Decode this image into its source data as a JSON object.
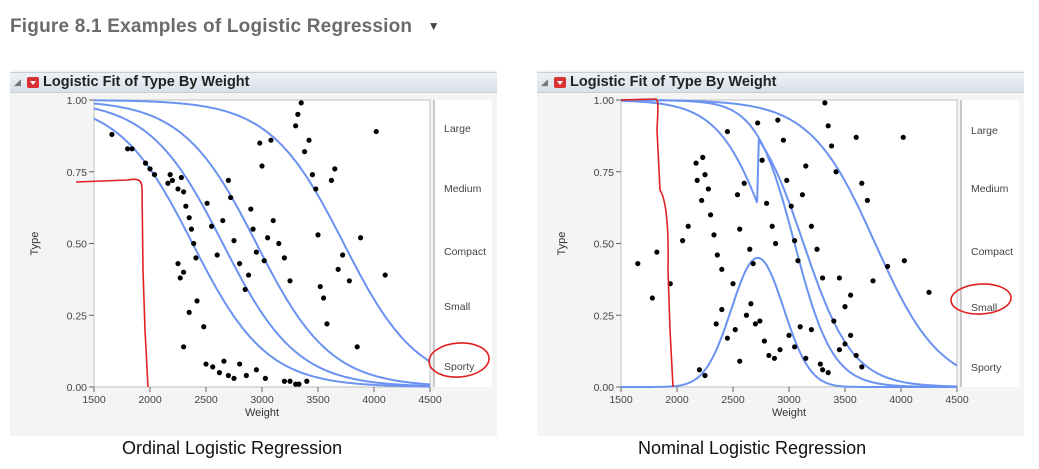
{
  "figure": {
    "title": "Figure 8.1 Examples of Logistic Regression",
    "menu_icon": "triangle-down"
  },
  "panels": [
    {
      "header": "Logistic Fit of Type By Weight",
      "caption": "Ordinal Logistic Regression"
    },
    {
      "header": "Logistic Fit of Type By Weight",
      "caption": "Nominal Logistic Regression"
    }
  ],
  "colors": {
    "curve": "#6a92f0",
    "points": "#000000",
    "annotation": "#e02020"
  },
  "chart_data": [
    {
      "type": "scatter",
      "title": "Logistic Fit of Type By Weight",
      "xlabel": "Weight",
      "ylabel": "Type",
      "xlim": [
        1500,
        4500
      ],
      "ylim": [
        0,
        1
      ],
      "xticks": [
        "1500",
        "2000",
        "2500",
        "3000",
        "3500",
        "4000",
        "4500"
      ],
      "yticks": [
        "0.00",
        "0.25",
        "0.50",
        "0.75",
        "1.00"
      ],
      "right_axis_categories": [
        "Large",
        "Medium",
        "Compact",
        "Small",
        "Sporty"
      ],
      "curves": [
        {
          "name": "",
          "kind": "logistic",
          "mid": 2380,
          "scale": 330
        },
        {
          "name": "",
          "kind": "logistic",
          "mid": 2650,
          "scale": 330
        },
        {
          "name": "",
          "kind": "logistic",
          "mid": 2950,
          "scale": 330
        },
        {
          "name": "",
          "kind": "logistic",
          "mid": 3730,
          "scale": 330
        }
      ],
      "points": [
        [
          1660,
          0.88
        ],
        [
          1800,
          0.83
        ],
        [
          1840,
          0.83
        ],
        [
          1960,
          0.78
        ],
        [
          2000,
          0.76
        ],
        [
          2040,
          0.74
        ],
        [
          2160,
          0.71
        ],
        [
          2180,
          0.74
        ],
        [
          2200,
          0.72
        ],
        [
          2250,
          0.69
        ],
        [
          2280,
          0.73
        ],
        [
          2300,
          0.68
        ],
        [
          2320,
          0.63
        ],
        [
          2350,
          0.59
        ],
        [
          2370,
          0.55
        ],
        [
          2390,
          0.5
        ],
        [
          2410,
          0.45
        ],
        [
          2300,
          0.4
        ],
        [
          2250,
          0.43
        ],
        [
          2270,
          0.38
        ],
        [
          2300,
          0.14
        ],
        [
          2350,
          0.26
        ],
        [
          2420,
          0.3
        ],
        [
          2480,
          0.21
        ],
        [
          2510,
          0.64
        ],
        [
          2550,
          0.56
        ],
        [
          2600,
          0.46
        ],
        [
          2650,
          0.58
        ],
        [
          2700,
          0.72
        ],
        [
          2720,
          0.66
        ],
        [
          2750,
          0.51
        ],
        [
          2800,
          0.43
        ],
        [
          2850,
          0.34
        ],
        [
          2880,
          0.39
        ],
        [
          2900,
          0.62
        ],
        [
          2920,
          0.55
        ],
        [
          2950,
          0.47
        ],
        [
          2980,
          0.85
        ],
        [
          3000,
          0.77
        ],
        [
          3020,
          0.44
        ],
        [
          3050,
          0.52
        ],
        [
          3080,
          0.86
        ],
        [
          3100,
          0.58
        ],
        [
          3150,
          0.5
        ],
        [
          3200,
          0.45
        ],
        [
          3250,
          0.37
        ],
        [
          3300,
          0.91
        ],
        [
          3320,
          0.95
        ],
        [
          3350,
          0.99
        ],
        [
          3380,
          0.82
        ],
        [
          3420,
          0.86
        ],
        [
          3450,
          0.74
        ],
        [
          3480,
          0.69
        ],
        [
          3500,
          0.53
        ],
        [
          3520,
          0.35
        ],
        [
          3550,
          0.31
        ],
        [
          3580,
          0.22
        ],
        [
          3620,
          0.72
        ],
        [
          3650,
          0.76
        ],
        [
          3680,
          0.41
        ],
        [
          3720,
          0.46
        ],
        [
          3780,
          0.37
        ],
        [
          3850,
          0.14
        ],
        [
          3880,
          0.52
        ],
        [
          4020,
          0.89
        ],
        [
          4100,
          0.39
        ],
        [
          2500,
          0.08
        ],
        [
          2560,
          0.07
        ],
        [
          2620,
          0.05
        ],
        [
          2660,
          0.09
        ],
        [
          2700,
          0.04
        ],
        [
          2750,
          0.03
        ],
        [
          2800,
          0.08
        ],
        [
          2860,
          0.04
        ],
        [
          2950,
          0.06
        ],
        [
          3030,
          0.03
        ],
        [
          3200,
          0.02
        ],
        [
          3250,
          0.02
        ],
        [
          3300,
          0.01
        ],
        [
          3330,
          0.01
        ],
        [
          3400,
          0.02
        ]
      ]
    },
    {
      "type": "scatter",
      "title": "Logistic Fit of Type By Weight",
      "xlabel": "Weight",
      "ylabel": "Type",
      "xlim": [
        1500,
        4500
      ],
      "ylim": [
        0,
        1
      ],
      "xticks": [
        "1500",
        "2000",
        "2500",
        "3000",
        "3500",
        "4000",
        "4500"
      ],
      "yticks": [
        "0.00",
        "0.25",
        "0.50",
        "0.75",
        "1.00"
      ],
      "right_axis_categories": [
        "Large",
        "Medium",
        "Compact",
        "Small",
        "Sporty"
      ],
      "curves": [
        {
          "name": "",
          "kind": "bump",
          "peak_x": 2720,
          "peak_y": 0.45
        },
        {
          "name": "",
          "kind": "logistic-bump"
        },
        {
          "name": "",
          "kind": "logistic",
          "mid": 3050,
          "scale": 170
        },
        {
          "name": "",
          "kind": "logistic",
          "mid": 3770,
          "scale": 290
        }
      ],
      "points": [
        [
          1650,
          0.43
        ],
        [
          1780,
          0.31
        ],
        [
          1820,
          0.47
        ],
        [
          1940,
          0.36
        ],
        [
          2050,
          0.51
        ],
        [
          2100,
          0.56
        ],
        [
          2170,
          0.78
        ],
        [
          2180,
          0.72
        ],
        [
          2220,
          0.65
        ],
        [
          2230,
          0.8
        ],
        [
          2250,
          0.74
        ],
        [
          2280,
          0.69
        ],
        [
          2300,
          0.6
        ],
        [
          2330,
          0.53
        ],
        [
          2360,
          0.46
        ],
        [
          2400,
          0.41
        ],
        [
          2450,
          0.89
        ],
        [
          2500,
          0.36
        ],
        [
          2540,
          0.67
        ],
        [
          2560,
          0.55
        ],
        [
          2600,
          0.71
        ],
        [
          2650,
          0.48
        ],
        [
          2680,
          0.43
        ],
        [
          2720,
          0.92
        ],
        [
          2760,
          0.79
        ],
        [
          2800,
          0.64
        ],
        [
          2850,
          0.56
        ],
        [
          2880,
          0.5
        ],
        [
          2900,
          0.93
        ],
        [
          2950,
          0.86
        ],
        [
          2980,
          0.72
        ],
        [
          3020,
          0.63
        ],
        [
          3050,
          0.51
        ],
        [
          3080,
          0.44
        ],
        [
          3120,
          0.67
        ],
        [
          3150,
          0.77
        ],
        [
          3200,
          0.56
        ],
        [
          3250,
          0.48
        ],
        [
          3300,
          0.38
        ],
        [
          3320,
          0.99
        ],
        [
          3350,
          0.91
        ],
        [
          3380,
          0.84
        ],
        [
          3420,
          0.75
        ],
        [
          3450,
          0.38
        ],
        [
          3500,
          0.28
        ],
        [
          3550,
          0.32
        ],
        [
          3600,
          0.87
        ],
        [
          3650,
          0.71
        ],
        [
          3700,
          0.65
        ],
        [
          3750,
          0.37
        ],
        [
          3880,
          0.42
        ],
        [
          4020,
          0.87
        ],
        [
          4030,
          0.44
        ],
        [
          4250,
          0.33
        ],
        [
          2200,
          0.06
        ],
        [
          2250,
          0.04
        ],
        [
          2350,
          0.22
        ],
        [
          2400,
          0.27
        ],
        [
          2450,
          0.17
        ],
        [
          2520,
          0.2
        ],
        [
          2560,
          0.09
        ],
        [
          2620,
          0.25
        ],
        [
          2660,
          0.29
        ],
        [
          2700,
          0.22
        ],
        [
          2740,
          0.23
        ],
        [
          2780,
          0.16
        ],
        [
          2820,
          0.11
        ],
        [
          2870,
          0.1
        ],
        [
          2920,
          0.13
        ],
        [
          3000,
          0.18
        ],
        [
          3050,
          0.14
        ],
        [
          3100,
          0.21
        ],
        [
          3150,
          0.1
        ],
        [
          3200,
          0.2
        ],
        [
          3280,
          0.08
        ],
        [
          3300,
          0.06
        ],
        [
          3350,
          0.05
        ],
        [
          3400,
          0.23
        ],
        [
          3450,
          0.13
        ],
        [
          3500,
          0.15
        ],
        [
          3550,
          0.18
        ],
        [
          3600,
          0.11
        ],
        [
          3650,
          0.07
        ]
      ]
    }
  ]
}
